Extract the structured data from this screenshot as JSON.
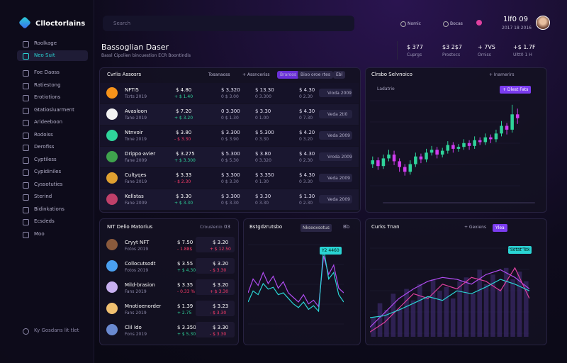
{
  "sidebar": {
    "logo": "Clloctorlains",
    "nav": [
      {
        "label": "Roolkage"
      },
      {
        "label": "Neo Suit",
        "active": true
      },
      {
        "label": "Foe Daoss"
      },
      {
        "label": "Ratiestong"
      },
      {
        "label": "Erotiotions"
      },
      {
        "label": "Gtatiosluarment"
      },
      {
        "label": "Arideeboon"
      },
      {
        "label": "Rodoiss"
      },
      {
        "label": "Derofiss"
      },
      {
        "label": "Cyptiless"
      },
      {
        "label": "Cypidiniles"
      },
      {
        "label": "Cyssotuties"
      },
      {
        "label": "Sterind"
      },
      {
        "label": "Bidinkations"
      },
      {
        "label": "Ecsdeds"
      },
      {
        "label": "Moo"
      }
    ],
    "footer": "Ky Gosdans lit tlet"
  },
  "topbar": {
    "search": "Search",
    "links": [
      "Nomic",
      "Bocas"
    ],
    "user": {
      "name": "1lf0 09",
      "sub": "2017 18 2016"
    }
  },
  "header": {
    "title": "Bassoglian Daser",
    "subtitle": "Bassl Cipolien bincuestion ECR Boontindis"
  },
  "stats": [
    {
      "value": "$ 377",
      "label": "Cuprgs"
    },
    {
      "value": "$3 2$7",
      "label": "Prostocs"
    },
    {
      "value": "+ 7VS",
      "label": "Orniss"
    },
    {
      "value": "+$ 1.7F",
      "label": "Ultt0 1 H"
    }
  ],
  "assets": {
    "title": "Cvrlis Assosrs",
    "tabs": [
      {
        "label": "Tosanaoss"
      },
      {
        "label": "+ Assnceriss"
      },
      {
        "label": "Braroos",
        "active": true
      },
      {
        "label": "Bioo oroe rtes"
      },
      {
        "label": "Ebl"
      }
    ],
    "rows": [
      {
        "name": "NFTI5",
        "sub": "Tcrts 2019",
        "price": "$ 4.80",
        "change": "+ $ 1.40",
        "up": true,
        "c2": "$ 3,320",
        "c2sub": "0 $ 3.00",
        "c3": "$ 13.30",
        "c3sub": "0 3.300",
        "c4": "$ 4.30",
        "c4sub": "0 2.30",
        "action": "Vioda 2009",
        "icon_color": "#f7931a"
      },
      {
        "name": "Avasloon",
        "sub": "Tane 2019",
        "price": "$ 7.20",
        "change": "+ $ 3.20",
        "up": true,
        "c2": "0 3.300",
        "c2sub": "0 $ 1.30",
        "c3": "$ 3.30",
        "c3sub": "0 1.00",
        "c4": "$ 4.30",
        "c4sub": "0 7.30",
        "action": "Veda 2ti0",
        "icon_color": "#f2f2f2"
      },
      {
        "name": "Ntnvoir",
        "sub": "Tone 2019",
        "price": "$ 3.80",
        "change": "- $ 3.30",
        "up": false,
        "c2": "$ 3.300",
        "c2sub": "0 $ 3.90",
        "c3": "$ 5.300",
        "c3sub": "0 3.30",
        "c4": "$ 4.20",
        "c4sub": "0 3.20",
        "action": "Veda 2009",
        "icon_color": "#2fd39a"
      },
      {
        "name": "Drippo·avier",
        "sub": "Fane 2009",
        "price": "$ 3.275",
        "change": "+ $ 3.300",
        "up": true,
        "c2": "$ 5.300",
        "c2sub": "0 $ 5.30",
        "c3": "$ 3.80",
        "c3sub": "0 3.320",
        "c4": "$ 4.30",
        "c4sub": "0 2.30",
        "action": "Vroda 2009",
        "icon_color": "#3fa34d"
      },
      {
        "name": "Cultyqes",
        "sub": "Fane 2019",
        "price": "$ 3.33",
        "change": "- $ 2.30",
        "up": false,
        "c2": "$ 3.300",
        "c2sub": "0 $ 3.30",
        "c3": "$ 3.350",
        "c3sub": "0 1.30",
        "c4": "$ 4.30",
        "c4sub": "0 3.30",
        "action": "Veda 2009",
        "icon_color": "#e0a030"
      },
      {
        "name": "Kellstas",
        "sub": "Fane 2009",
        "price": "$ 3.30",
        "change": "+ $ 3.30",
        "up": true,
        "c2": "$ 3.300",
        "c2sub": "0 $ 3.30",
        "c3": "$ 3.30",
        "c3sub": "0 3.30",
        "c4": "$ 1.30",
        "c4sub": "0 2.30",
        "action": "Veda 2009",
        "icon_color": "#c0406a"
      }
    ]
  },
  "candles_chart": {
    "title": "Clrsbo Selvnoico",
    "tab": "+ Inamerirs",
    "legend": "Ladatrio",
    "tag": "+ Dlest Fats",
    "ylim": [
      0,
      100
    ],
    "up_color": "#2fd39a",
    "down_color": "#d03cf0",
    "candles": [
      {
        "o": 30,
        "c": 34,
        "h": 38,
        "l": 26
      },
      {
        "o": 34,
        "c": 28,
        "h": 37,
        "l": 24
      },
      {
        "o": 28,
        "c": 36,
        "h": 40,
        "l": 25
      },
      {
        "o": 36,
        "c": 40,
        "h": 45,
        "l": 33
      },
      {
        "o": 40,
        "c": 33,
        "h": 44,
        "l": 29
      },
      {
        "o": 33,
        "c": 27,
        "h": 36,
        "l": 22
      },
      {
        "o": 27,
        "c": 22,
        "h": 30,
        "l": 18
      },
      {
        "o": 22,
        "c": 30,
        "h": 34,
        "l": 19
      },
      {
        "o": 30,
        "c": 38,
        "h": 42,
        "l": 27
      },
      {
        "o": 38,
        "c": 35,
        "h": 41,
        "l": 31
      },
      {
        "o": 35,
        "c": 42,
        "h": 46,
        "l": 32
      },
      {
        "o": 42,
        "c": 45,
        "h": 49,
        "l": 39
      },
      {
        "o": 45,
        "c": 40,
        "h": 48,
        "l": 36
      },
      {
        "o": 40,
        "c": 44,
        "h": 47,
        "l": 37
      },
      {
        "o": 44,
        "c": 50,
        "h": 54,
        "l": 41
      },
      {
        "o": 50,
        "c": 46,
        "h": 53,
        "l": 42
      },
      {
        "o": 46,
        "c": 48,
        "h": 51,
        "l": 43
      },
      {
        "o": 48,
        "c": 52,
        "h": 56,
        "l": 45
      },
      {
        "o": 52,
        "c": 49,
        "h": 55,
        "l": 45
      },
      {
        "o": 49,
        "c": 55,
        "h": 59,
        "l": 46
      },
      {
        "o": 55,
        "c": 53,
        "h": 58,
        "l": 50
      },
      {
        "o": 53,
        "c": 58,
        "h": 62,
        "l": 50
      },
      {
        "o": 58,
        "c": 56,
        "h": 61,
        "l": 52
      },
      {
        "o": 56,
        "c": 62,
        "h": 66,
        "l": 53
      },
      {
        "o": 62,
        "c": 70,
        "h": 75,
        "l": 59
      },
      {
        "o": 70,
        "c": 66,
        "h": 73,
        "l": 61
      },
      {
        "o": 66,
        "c": 82,
        "h": 92,
        "l": 63
      },
      {
        "o": 82,
        "c": 78,
        "h": 88,
        "l": 72
      }
    ]
  },
  "nft": {
    "title": "NIT Delio Matorius",
    "tab": "Crouslenio",
    "page": "03",
    "rows": [
      {
        "name": "Cryyt NFT",
        "sub": "Fotos 2019",
        "price": "$ 7.50",
        "change": "- 1.88$",
        "up": false,
        "value": "$ 3.20",
        "vsub": "+ $ 12.50",
        "icon_color": "#8a5a3c"
      },
      {
        "name": "Collocutsodt",
        "sub": "Fotos 2019",
        "price": "$ 3.55",
        "change": "+ $ 4.30",
        "up": true,
        "value": "$ 3.20",
        "vsub": "- $ 3.30",
        "icon_color": "#4aa0f0"
      },
      {
        "name": "Mild-brasion",
        "sub": "Fans 2019",
        "price": "$ 3.35",
        "change": "- 0.33 %",
        "up": false,
        "value": "$ 3.20",
        "vsub": "+ $ 3.30",
        "icon_color": "#c8b0f0"
      },
      {
        "name": "Mnotioenorder",
        "sub": "Fans 2019",
        "price": "$ 1.39",
        "change": "+ 2.75",
        "up": true,
        "value": "$ 3.23",
        "vsub": "- $ 3.30",
        "icon_color": "#f0c070"
      },
      {
        "name": "Clil Ido",
        "sub": "Fons 2019",
        "price": "$ 3.350",
        "change": "+ $ 5.30",
        "up": true,
        "value": "$ 3.30",
        "vsub": "- $ 3.30",
        "icon_color": "#6a8ad0"
      }
    ]
  },
  "line_chart": {
    "title": "Bstgdzrutsbo",
    "tab": "Nkseoxsotus",
    "page": "Bb",
    "tag": "Y2 4460",
    "ylim": [
      0,
      100
    ],
    "series": [
      {
        "color": "#b04cf0",
        "values": [
          40,
          55,
          48,
          62,
          50,
          58,
          45,
          52,
          40,
          35,
          30,
          38,
          28,
          32,
          25,
          80,
          60,
          70,
          45,
          40
        ]
      },
      {
        "color": "#2ad4d4",
        "values": [
          30,
          42,
          38,
          50,
          44,
          46,
          38,
          40,
          34,
          28,
          24,
          30,
          22,
          26,
          20,
          88,
          55,
          62,
          38,
          30
        ]
      }
    ]
  },
  "trend_chart": {
    "title": "Curks Tnan",
    "tab": "+ Gexiens",
    "button": "Ylea",
    "tag": "Sotat Tox",
    "ylim": [
      0,
      100
    ],
    "bar_color": "#3a2a6a",
    "bars": [
      20,
      35,
      28,
      45,
      30,
      50,
      38,
      55,
      42,
      60,
      48,
      52,
      40,
      58,
      62,
      45,
      70,
      55,
      65,
      50,
      72,
      60,
      68,
      58
    ],
    "series": [
      {
        "color": "#b04cf0",
        "values": [
          10,
          25,
          40,
          50,
          58,
          62,
          60,
          55,
          65,
          70,
          62,
          50
        ]
      },
      {
        "color": "#e040a0",
        "values": [
          5,
          15,
          30,
          45,
          40,
          55,
          50,
          62,
          58,
          48,
          72,
          40
        ]
      },
      {
        "color": "#2ad4d4",
        "values": [
          20,
          22,
          28,
          35,
          42,
          38,
          48,
          45,
          52,
          60,
          55,
          48
        ]
      }
    ]
  }
}
